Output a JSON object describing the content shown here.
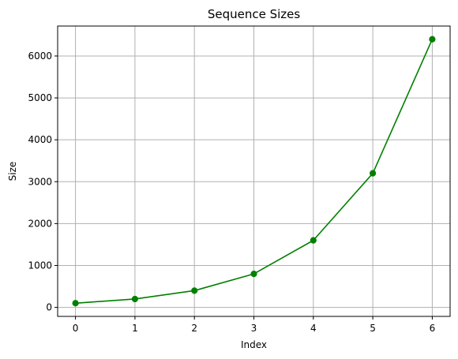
{
  "chart_data": {
    "type": "line",
    "title": "Sequence Sizes",
    "xlabel": "Index",
    "ylabel": "Size",
    "x": [
      0,
      1,
      2,
      3,
      4,
      5,
      6
    ],
    "series": [
      {
        "values": [
          100,
          200,
          400,
          800,
          1600,
          3200,
          6400
        ],
        "color": "#008000",
        "marker": "circle"
      }
    ],
    "xlim": [
      -0.3,
      6.3
    ],
    "ylim": [
      -215,
      6715
    ],
    "xticks": [
      0,
      1,
      2,
      3,
      4,
      5,
      6
    ],
    "yticks": [
      0,
      1000,
      2000,
      3000,
      4000,
      5000,
      6000
    ],
    "grid": true
  }
}
